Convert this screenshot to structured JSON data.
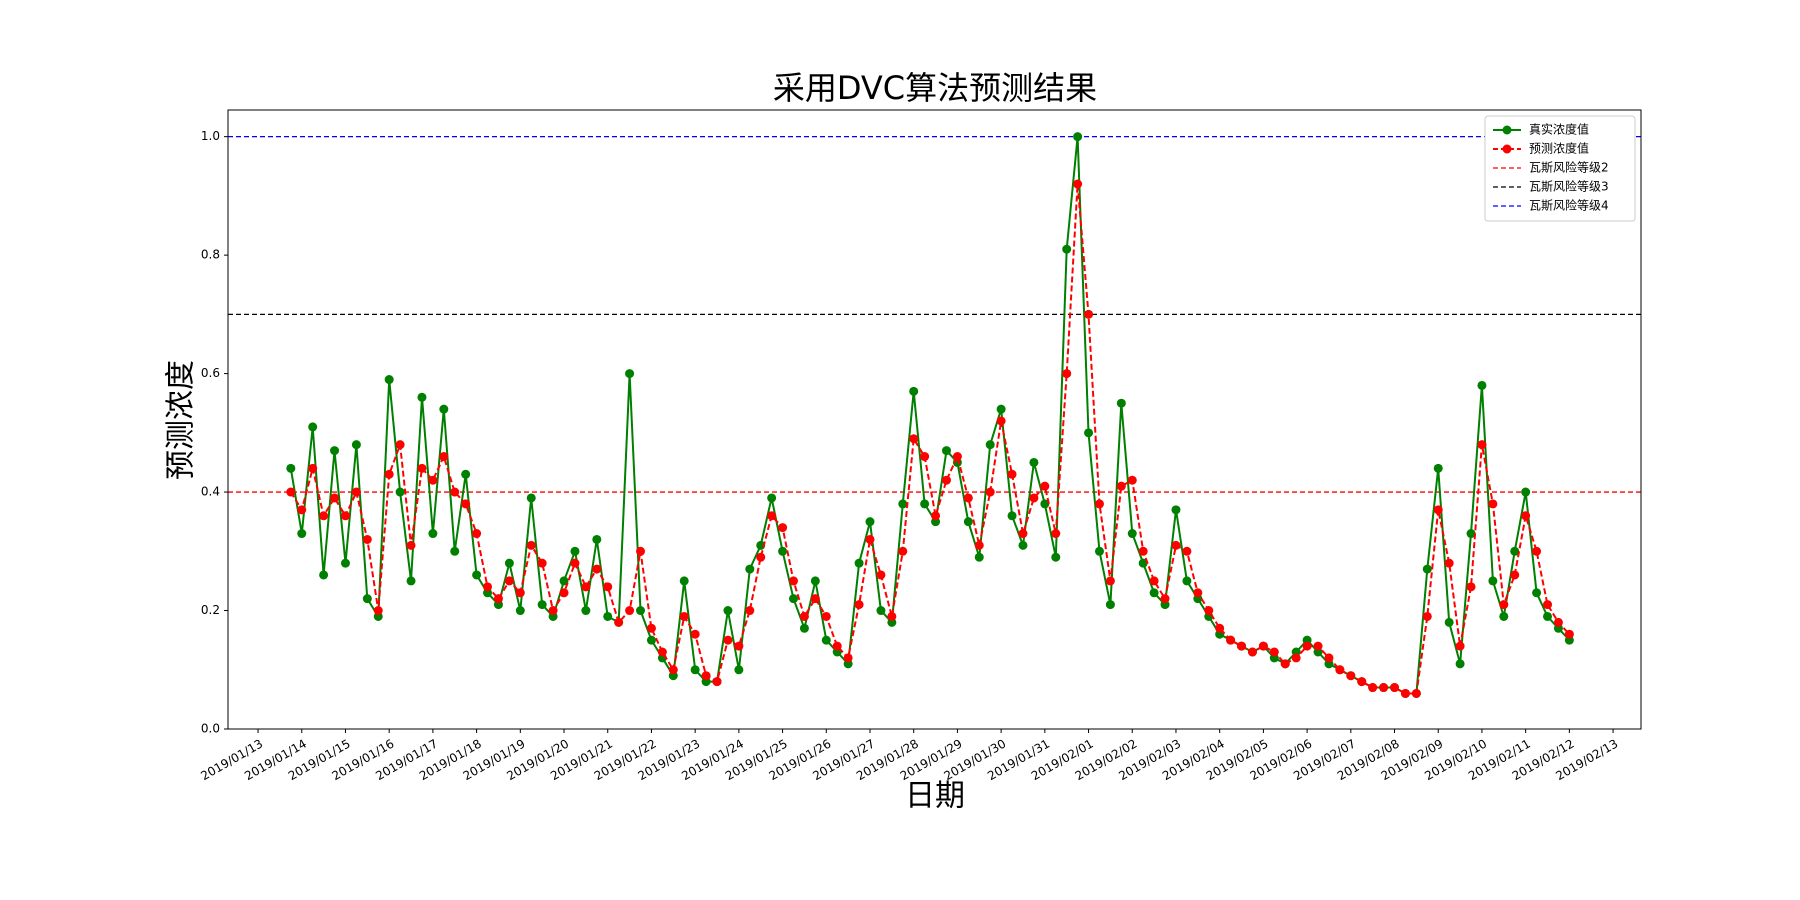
{
  "chart_data": {
    "type": "line",
    "title": "采用DVC算法预测结果",
    "x_label": "日期",
    "y_label": "预测浓度",
    "x": [
      "2019-01-13T18:00",
      "2019-01-14T00:00",
      "2019-01-14T06:00",
      "2019-01-14T12:00",
      "2019-01-14T18:00",
      "2019-01-15T00:00",
      "2019-01-15T06:00",
      "2019-01-15T12:00",
      "2019-01-15T18:00",
      "2019-01-16T00:00",
      "2019-01-16T06:00",
      "2019-01-16T12:00",
      "2019-01-16T18:00",
      "2019-01-17T00:00",
      "2019-01-17T06:00",
      "2019-01-17T12:00",
      "2019-01-17T18:00",
      "2019-01-18T00:00",
      "2019-01-18T06:00",
      "2019-01-18T12:00",
      "2019-01-18T18:00",
      "2019-01-19T00:00",
      "2019-01-19T06:00",
      "2019-01-19T12:00",
      "2019-01-19T18:00",
      "2019-01-20T00:00",
      "2019-01-20T06:00",
      "2019-01-20T12:00",
      "2019-01-20T18:00",
      "2019-01-21T00:00",
      "2019-01-21T06:00",
      "2019-01-21T12:00",
      "2019-01-21T18:00",
      "2019-01-22T00:00",
      "2019-01-22T06:00",
      "2019-01-22T12:00",
      "2019-01-22T18:00",
      "2019-01-23T00:00",
      "2019-01-23T06:00",
      "2019-01-23T12:00",
      "2019-01-23T18:00",
      "2019-01-24T00:00",
      "2019-01-24T06:00",
      "2019-01-24T12:00",
      "2019-01-24T18:00",
      "2019-01-25T00:00",
      "2019-01-25T06:00",
      "2019-01-25T12:00",
      "2019-01-25T18:00",
      "2019-01-26T00:00",
      "2019-01-26T06:00",
      "2019-01-26T12:00",
      "2019-01-26T18:00",
      "2019-01-27T00:00",
      "2019-01-27T06:00",
      "2019-01-27T12:00",
      "2019-01-27T18:00",
      "2019-01-28T00:00",
      "2019-01-28T06:00",
      "2019-01-28T12:00",
      "2019-01-28T18:00",
      "2019-01-29T00:00",
      "2019-01-29T06:00",
      "2019-01-29T12:00",
      "2019-01-29T18:00",
      "2019-01-30T00:00",
      "2019-01-30T06:00",
      "2019-01-30T12:00",
      "2019-01-30T18:00",
      "2019-01-31T00:00",
      "2019-01-31T06:00",
      "2019-01-31T12:00",
      "2019-01-31T18:00",
      "2019-02-01T00:00",
      "2019-02-01T06:00",
      "2019-02-01T12:00",
      "2019-02-01T18:00",
      "2019-02-02T00:00",
      "2019-02-02T06:00",
      "2019-02-02T12:00",
      "2019-02-02T18:00",
      "2019-02-03T00:00",
      "2019-02-03T06:00",
      "2019-02-03T12:00",
      "2019-02-03T18:00",
      "2019-02-04T00:00",
      "2019-02-04T06:00",
      "2019-02-04T12:00",
      "2019-02-04T18:00",
      "2019-02-05T00:00",
      "2019-02-05T06:00",
      "2019-02-05T12:00",
      "2019-02-05T18:00",
      "2019-02-06T00:00",
      "2019-02-06T06:00",
      "2019-02-06T12:00",
      "2019-02-06T18:00",
      "2019-02-07T00:00",
      "2019-02-07T06:00",
      "2019-02-07T12:00",
      "2019-02-07T18:00",
      "2019-02-08T00:00",
      "2019-02-08T06:00",
      "2019-02-08T12:00",
      "2019-02-08T18:00",
      "2019-02-09T00:00",
      "2019-02-09T06:00",
      "2019-02-09T12:00",
      "2019-02-09T18:00",
      "2019-02-10T00:00",
      "2019-02-10T06:00",
      "2019-02-10T12:00",
      "2019-02-10T18:00",
      "2019-02-11T00:00",
      "2019-02-11T06:00",
      "2019-02-11T12:00",
      "2019-02-11T18:00",
      "2019-02-12T00:00"
    ],
    "series": [
      {
        "name": "真实浓度值",
        "color": "#008000",
        "dash": false,
        "values": [
          0.44,
          0.33,
          0.51,
          0.26,
          0.47,
          0.28,
          0.48,
          0.22,
          0.19,
          0.59,
          0.4,
          0.25,
          0.56,
          0.33,
          0.54,
          0.3,
          0.43,
          0.26,
          0.23,
          0.21,
          0.28,
          0.2,
          0.39,
          0.21,
          0.19,
          0.25,
          0.3,
          0.2,
          0.32,
          0.19,
          0.18,
          0.6,
          0.2,
          0.15,
          0.12,
          0.09,
          0.25,
          0.1,
          0.08,
          0.08,
          0.2,
          0.1,
          0.27,
          0.31,
          0.39,
          0.3,
          0.22,
          0.17,
          0.25,
          0.15,
          0.13,
          0.11,
          0.28,
          0.35,
          0.2,
          0.18,
          0.38,
          0.57,
          0.38,
          0.35,
          0.47,
          0.45,
          0.35,
          0.29,
          0.48,
          0.54,
          0.36,
          0.31,
          0.45,
          0.38,
          0.29,
          0.81,
          1.0,
          0.5,
          0.3,
          0.21,
          0.55,
          0.33,
          0.28,
          0.23,
          0.21,
          0.37,
          0.25,
          0.22,
          0.19,
          0.16,
          0.15,
          0.14,
          0.13,
          0.14,
          0.12,
          0.11,
          0.13,
          0.15,
          0.13,
          0.11,
          0.1,
          0.09,
          0.08,
          0.07,
          0.07,
          0.07,
          0.06,
          0.06,
          0.27,
          0.44,
          0.18,
          0.11,
          0.33,
          0.58,
          0.25,
          0.19,
          0.3,
          0.4,
          0.23,
          0.19,
          0.17,
          0.15
        ]
      },
      {
        "name": "预测浓度值",
        "color": "#ff0000",
        "dash": true,
        "values": [
          0.4,
          0.37,
          0.44,
          0.36,
          0.39,
          0.36,
          0.4,
          0.32,
          0.2,
          0.43,
          0.48,
          0.31,
          0.44,
          0.42,
          0.46,
          0.4,
          0.38,
          0.33,
          0.24,
          0.22,
          0.25,
          0.23,
          0.31,
          0.28,
          0.2,
          0.23,
          0.28,
          0.24,
          0.27,
          0.24,
          0.18,
          0.2,
          0.3,
          0.17,
          0.13,
          0.1,
          0.19,
          0.16,
          0.09,
          0.08,
          0.15,
          0.14,
          0.2,
          0.29,
          0.36,
          0.34,
          0.25,
          0.19,
          0.22,
          0.19,
          0.14,
          0.12,
          0.21,
          0.32,
          0.26,
          0.19,
          0.3,
          0.49,
          0.46,
          0.36,
          0.42,
          0.46,
          0.39,
          0.31,
          0.4,
          0.52,
          0.43,
          0.33,
          0.39,
          0.41,
          0.33,
          0.6,
          0.92,
          0.7,
          0.38,
          0.25,
          0.41,
          0.42,
          0.3,
          0.25,
          0.22,
          0.31,
          0.3,
          0.23,
          0.2,
          0.17,
          0.15,
          0.14,
          0.13,
          0.14,
          0.13,
          0.11,
          0.12,
          0.14,
          0.14,
          0.12,
          0.1,
          0.09,
          0.08,
          0.07,
          0.07,
          0.07,
          0.06,
          0.06,
          0.19,
          0.37,
          0.28,
          0.14,
          0.24,
          0.48,
          0.38,
          0.21,
          0.26,
          0.36,
          0.3,
          0.21,
          0.18,
          0.16
        ]
      }
    ],
    "thresholds": [
      {
        "name": "瓦斯风险等级2",
        "value": 0.4,
        "color": "#ff0000"
      },
      {
        "name": "瓦斯风险等级3",
        "value": 0.7,
        "color": "#000000"
      },
      {
        "name": "瓦斯风险等级4",
        "value": 1.0,
        "color": "#0000ff"
      }
    ],
    "xlim": [
      "2019-01-12T07:30",
      "2019-02-13T15:20"
    ],
    "xticks": [
      {
        "value": "2019-01-13",
        "label": "2019/01/13"
      },
      {
        "value": "2019-01-14",
        "label": "2019/01/14"
      },
      {
        "value": "2019-01-15",
        "label": "2019/01/15"
      },
      {
        "value": "2019-01-16",
        "label": "2019/01/16"
      },
      {
        "value": "2019-01-17",
        "label": "2019/01/17"
      },
      {
        "value": "2019-01-18",
        "label": "2019/01/18"
      },
      {
        "value": "2019-01-19",
        "label": "2019/01/19"
      },
      {
        "value": "2019-01-20",
        "label": "2019/01/20"
      },
      {
        "value": "2019-01-21",
        "label": "2019/01/21"
      },
      {
        "value": "2019-01-22",
        "label": "2019/01/22"
      },
      {
        "value": "2019-01-23",
        "label": "2019/01/23"
      },
      {
        "value": "2019-01-24",
        "label": "2019/01/24"
      },
      {
        "value": "2019-01-25",
        "label": "2019/01/25"
      },
      {
        "value": "2019-01-26",
        "label": "2019/01/26"
      },
      {
        "value": "2019-01-27",
        "label": "2019/01/27"
      },
      {
        "value": "2019-01-28",
        "label": "2019/01/28"
      },
      {
        "value": "2019-01-29",
        "label": "2019/01/29"
      },
      {
        "value": "2019-01-30",
        "label": "2019/01/30"
      },
      {
        "value": "2019-01-31",
        "label": "2019/01/31"
      },
      {
        "value": "2019-02-01",
        "label": "2019/02/01"
      },
      {
        "value": "2019-02-02",
        "label": "2019/02/02"
      },
      {
        "value": "2019-02-03",
        "label": "2019/02/03"
      },
      {
        "value": "2019-02-04",
        "label": "2019/02/04"
      },
      {
        "value": "2019-02-05",
        "label": "2019/02/05"
      },
      {
        "value": "2019-02-06",
        "label": "2019/02/06"
      },
      {
        "value": "2019-02-07",
        "label": "2019/02/07"
      },
      {
        "value": "2019-02-08",
        "label": "2019/02/08"
      },
      {
        "value": "2019-02-09",
        "label": "2019/02/09"
      },
      {
        "value": "2019-02-10",
        "label": "2019/02/10"
      },
      {
        "value": "2019-02-11",
        "label": "2019/02/11"
      },
      {
        "value": "2019-02-12",
        "label": "2019/02/12"
      },
      {
        "value": "2019-02-13",
        "label": "2019/02/13"
      }
    ],
    "ylim": [
      0,
      1.045
    ],
    "yticks": [
      {
        "value": 0,
        "label": "0.0"
      },
      0.2,
      0.4,
      0.6,
      0.8,
      {
        "value": 1.0,
        "label": "1.0"
      }
    ],
    "legend": "upper right"
  }
}
